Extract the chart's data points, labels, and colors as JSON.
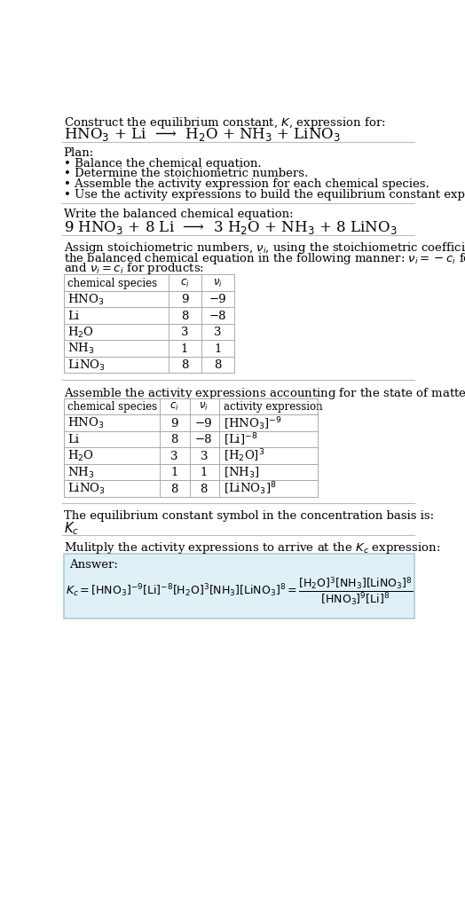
{
  "title_line1": "Construct the equilibrium constant, $K$, expression for:",
  "title_line2": "HNO$_3$ + Li  ⟶  H$_2$O + NH$_3$ + LiNO$_3$",
  "plan_header": "Plan:",
  "plan_bullets": [
    "• Balance the chemical equation.",
    "• Determine the stoichiometric numbers.",
    "• Assemble the activity expression for each chemical species.",
    "• Use the activity expressions to build the equilibrium constant expression."
  ],
  "balanced_header": "Write the balanced chemical equation:",
  "balanced_eq": "9 HNO$_3$ + 8 Li  ⟶  3 H$_2$O + NH$_3$ + 8 LiNO$_3$",
  "stoich_intro": "Assign stoichiometric numbers, $\\nu_i$, using the stoichiometric coefficients, $c_i$, from the balanced chemical equation in the following manner: $\\nu_i = -c_i$ for reactants and $\\nu_i = c_i$ for products:",
  "table1_headers": [
    "chemical species",
    "c_i",
    "v_i"
  ],
  "table1_data": [
    [
      "HNO$_3$",
      "9",
      "−9"
    ],
    [
      "Li",
      "8",
      "−8"
    ],
    [
      "H$_2$O",
      "3",
      "3"
    ],
    [
      "NH$_3$",
      "1",
      "1"
    ],
    [
      "LiNO$_3$",
      "8",
      "8"
    ]
  ],
  "assemble_header": "Assemble the activity expressions accounting for the state of matter and $\\nu_i$:",
  "table2_headers": [
    "chemical species",
    "c_i",
    "v_i",
    "activity expression"
  ],
  "table2_data": [
    [
      "HNO$_3$",
      "9",
      "−9",
      "[HNO$_3$]$^{-9}$"
    ],
    [
      "Li",
      "8",
      "−8",
      "[Li]$^{-8}$"
    ],
    [
      "H$_2$O",
      "3",
      "3",
      "[H$_2$O]$^3$"
    ],
    [
      "NH$_3$",
      "1",
      "1",
      "[NH$_3$]"
    ],
    [
      "LiNO$_3$",
      "8",
      "8",
      "[LiNO$_3$]$^8$"
    ]
  ],
  "kc_header": "The equilibrium constant symbol in the concentration basis is:",
  "kc_symbol": "$K_c$",
  "multiply_header": "Mulitply the activity expressions to arrive at the $K_c$ expression:",
  "answer_label": "Answer:",
  "bg_color": "#ffffff",
  "answer_box_color": "#dff0f7",
  "answer_box_border": "#aaccdd",
  "sep_color": "#bbbbbb",
  "fs": 9.5,
  "title_fs": 12
}
